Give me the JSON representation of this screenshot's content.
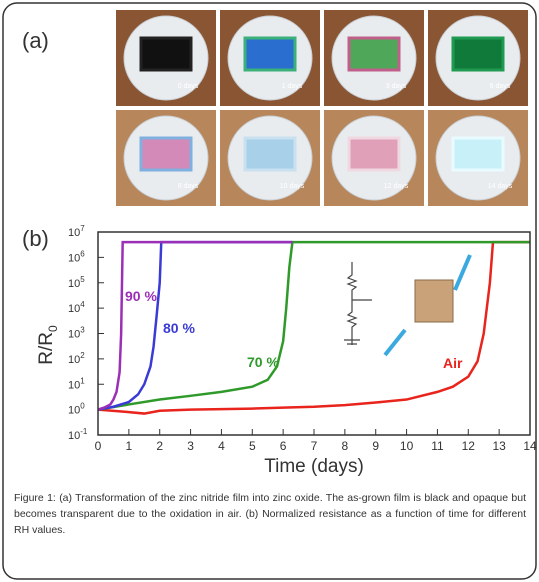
{
  "figure": {
    "panel_a_label": "(a)",
    "panel_b_label": "(b)",
    "photo_labels": [
      "0 days",
      "1 days",
      "3 days",
      "6 days",
      "8 days",
      "10 days",
      "12 days",
      "14 days"
    ]
  },
  "chart_data": {
    "type": "line",
    "log_y": true,
    "x_label": "Time (days)",
    "y_label": "R/R",
    "y_label_sub": "0",
    "xlim": [
      0,
      14
    ],
    "xticks": [
      0,
      1,
      2,
      3,
      4,
      5,
      6,
      7,
      8,
      9,
      10,
      11,
      12,
      13,
      14
    ],
    "ylim": [
      0.1,
      10000000
    ],
    "yticks": [
      {
        "value": 0.1,
        "label": "10",
        "exponent": "-1"
      },
      {
        "value": 1,
        "label": "10",
        "exponent": "0"
      },
      {
        "value": 10,
        "label": "10",
        "exponent": "1"
      },
      {
        "value": 100,
        "label": "10",
        "exponent": "2"
      },
      {
        "value": 1000,
        "label": "10",
        "exponent": "3"
      },
      {
        "value": 10000,
        "label": "10",
        "exponent": "4"
      },
      {
        "value": 100000,
        "label": "10",
        "exponent": "5"
      },
      {
        "value": 1000000,
        "label": "10",
        "exponent": "6"
      },
      {
        "value": 10000000,
        "label": "10",
        "exponent": "7"
      }
    ],
    "series": [
      {
        "name": "Air",
        "color": "#e8241c",
        "x": [
          0,
          1,
          1.5,
          2,
          3,
          4,
          5,
          6,
          7,
          8,
          9,
          10,
          11,
          11.5,
          12,
          12.3,
          12.5,
          12.7,
          12.8,
          14
        ],
        "y": [
          1,
          0.8,
          0.7,
          0.9,
          1,
          1.05,
          1.1,
          1.2,
          1.3,
          1.5,
          1.9,
          2.5,
          5,
          8,
          20,
          80,
          1000,
          100000,
          4000000,
          4000000
        ]
      },
      {
        "name": "70 %",
        "color": "#2f9a2a",
        "x": [
          0,
          1,
          2,
          3,
          4,
          5,
          5.5,
          5.8,
          6,
          6.1,
          6.2,
          6.3,
          14
        ],
        "y": [
          1,
          1.6,
          2.5,
          3.5,
          5,
          8,
          15,
          50,
          500,
          10000,
          400000,
          4000000,
          4000000
        ]
      },
      {
        "name": "80 %",
        "color": "#3a3ad6",
        "x": [
          0,
          0.5,
          1,
          1.3,
          1.5,
          1.7,
          1.8,
          1.9,
          2,
          2.05,
          6.3
        ],
        "y": [
          1,
          1.3,
          2,
          4,
          10,
          50,
          300,
          5000,
          100000,
          4000000,
          4000000
        ]
      },
      {
        "name": "90 %",
        "color": "#9b2fb5",
        "x": [
          0,
          0.2,
          0.4,
          0.5,
          0.6,
          0.7,
          0.75,
          0.8,
          6.3
        ],
        "y": [
          1,
          1.2,
          1.6,
          2.5,
          5,
          30,
          1000,
          4000000,
          4000000
        ]
      }
    ]
  },
  "caption": "Figure 1: (a) Transformation of the zinc nitride film into zinc oxide. The as-grown film is black and opaque but becomes transparent due to the oxidation in air. (b) Normalized resistance as a function of time for different RH values."
}
